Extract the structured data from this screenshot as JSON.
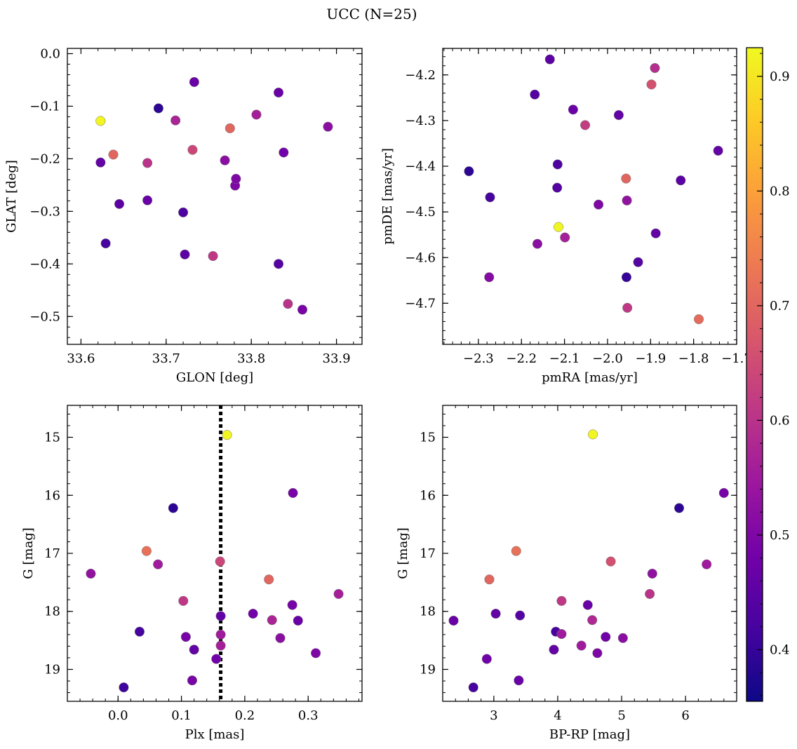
{
  "figure": {
    "title": "UCC (N=25)",
    "colorbar": {
      "range": [
        0.355,
        0.925
      ],
      "ticks": [
        0.4,
        0.5,
        0.6,
        0.7,
        0.8,
        0.9
      ],
      "tick_labels": [
        "0.4",
        "0.5",
        "0.6",
        "0.7",
        "0.8",
        "0.9"
      ],
      "colormap": "plasma",
      "stops": [
        "#0d0887",
        "#46039f",
        "#7201a8",
        "#9c179e",
        "#bd3786",
        "#d8576b",
        "#ed7953",
        "#fb9f3a",
        "#fdca26",
        "#f0f921"
      ]
    }
  },
  "chart_data": [
    {
      "id": "p1",
      "type": "scatter",
      "title": "",
      "xlabel": "GLON [deg]",
      "ylabel": "GLAT [deg]",
      "xlim": [
        33.584,
        33.93
      ],
      "ylim": [
        -0.553,
        0.01
      ],
      "y_inverted": false,
      "xticks": [
        33.6,
        33.7,
        33.8,
        33.9
      ],
      "xtick_labels": [
        "33.6",
        "33.7",
        "33.8",
        "33.9"
      ],
      "yticks": [
        0.0,
        -0.1,
        -0.2,
        -0.3,
        -0.4,
        -0.5
      ],
      "ytick_labels": [
        "0.0",
        "−0.1",
        "−0.2",
        "−0.3",
        "−0.4",
        "−0.5"
      ],
      "points": [
        [
          33.623,
          -0.128,
          0.92
        ],
        [
          33.623,
          -0.207,
          0.46
        ],
        [
          33.629,
          -0.361,
          0.42
        ],
        [
          33.638,
          -0.192,
          0.7
        ],
        [
          33.645,
          -0.286,
          0.45
        ],
        [
          33.678,
          -0.208,
          0.6
        ],
        [
          33.678,
          -0.279,
          0.47
        ],
        [
          33.691,
          -0.104,
          0.39
        ],
        [
          33.711,
          -0.127,
          0.57
        ],
        [
          33.72,
          -0.302,
          0.43
        ],
        [
          33.722,
          -0.382,
          0.45
        ],
        [
          33.731,
          -0.183,
          0.64
        ],
        [
          33.733,
          -0.054,
          0.47
        ],
        [
          33.755,
          -0.385,
          0.61
        ],
        [
          33.769,
          -0.203,
          0.52
        ],
        [
          33.775,
          -0.142,
          0.7
        ],
        [
          33.781,
          -0.251,
          0.5
        ],
        [
          33.782,
          -0.238,
          0.5
        ],
        [
          33.806,
          -0.116,
          0.56
        ],
        [
          33.832,
          -0.074,
          0.47
        ],
        [
          33.832,
          -0.4,
          0.44
        ],
        [
          33.838,
          -0.188,
          0.48
        ],
        [
          33.843,
          -0.476,
          0.6
        ],
        [
          33.86,
          -0.487,
          0.49
        ],
        [
          33.89,
          -0.139,
          0.52
        ]
      ]
    },
    {
      "id": "p2",
      "type": "scatter",
      "title": "",
      "xlabel": "pmRA [mas/yr]",
      "ylabel": "pmDE [mas/yr]",
      "xlim": [
        -2.383,
        -1.7
      ],
      "ylim": [
        -4.79,
        -4.142
      ],
      "y_inverted": false,
      "xticks": [
        -2.3,
        -2.2,
        -2.1,
        -2.0,
        -1.9,
        -1.8,
        -1.7
      ],
      "xtick_labels": [
        "−2.3",
        "−2.2",
        "−2.1",
        "−2.0",
        "−1.9",
        "−1.8",
        "−1.7"
      ],
      "yticks": [
        -4.2,
        -4.3,
        -4.4,
        -4.5,
        -4.6,
        -4.7
      ],
      "ytick_labels": [
        "−4.2",
        "−4.3",
        "−4.4",
        "−4.5",
        "−4.6",
        "−4.7"
      ],
      "points": [
        [
          -2.322,
          -4.411,
          0.39
        ],
        [
          -2.273,
          -4.468,
          0.42
        ],
        [
          -2.275,
          -4.643,
          0.51
        ],
        [
          -2.163,
          -4.57,
          0.52
        ],
        [
          -2.169,
          -4.243,
          0.44
        ],
        [
          -2.134,
          -4.166,
          0.45
        ],
        [
          -2.116,
          -4.396,
          0.43
        ],
        [
          -2.117,
          -4.447,
          0.44
        ],
        [
          -2.114,
          -4.533,
          0.92
        ],
        [
          -2.099,
          -4.556,
          0.56
        ],
        [
          -2.08,
          -4.276,
          0.47
        ],
        [
          -2.052,
          -4.31,
          0.62
        ],
        [
          -2.021,
          -4.484,
          0.5
        ],
        [
          -1.974,
          -4.288,
          0.46
        ],
        [
          -1.957,
          -4.427,
          0.7
        ],
        [
          -1.955,
          -4.475,
          0.53
        ],
        [
          -1.956,
          -4.643,
          0.4
        ],
        [
          -1.954,
          -4.71,
          0.61
        ],
        [
          -1.898,
          -4.221,
          0.66
        ],
        [
          -1.89,
          -4.185,
          0.59
        ],
        [
          -1.888,
          -4.547,
          0.46
        ],
        [
          -1.929,
          -4.61,
          0.44
        ],
        [
          -1.83,
          -4.431,
          0.45
        ],
        [
          -1.788,
          -4.735,
          0.71
        ],
        [
          -1.743,
          -4.366,
          0.46
        ]
      ]
    },
    {
      "id": "p3",
      "type": "scatter",
      "title": "",
      "xlabel": "Plx [mas]",
      "ylabel": "G [mag]",
      "xlim": [
        -0.08,
        0.385
      ],
      "ylim": [
        19.55,
        14.45
      ],
      "y_inverted": true,
      "vline_x": 0.162,
      "xticks": [
        0.0,
        0.1,
        0.2,
        0.3
      ],
      "xtick_labels": [
        "0.0",
        "0.1",
        "0.2",
        "0.3"
      ],
      "yticks": [
        15,
        16,
        17,
        18,
        19
      ],
      "ytick_labels": [
        "15",
        "16",
        "17",
        "18",
        "19"
      ],
      "points": [
        [
          0.172,
          14.96,
          0.92
        ],
        [
          0.276,
          15.96,
          0.49
        ],
        [
          0.087,
          16.22,
          0.39
        ],
        [
          0.045,
          16.96,
          0.72
        ],
        [
          0.063,
          17.19,
          0.55
        ],
        [
          -0.043,
          17.35,
          0.53
        ],
        [
          0.161,
          17.14,
          0.64
        ],
        [
          0.238,
          17.45,
          0.7
        ],
        [
          0.348,
          17.7,
          0.56
        ],
        [
          0.103,
          17.82,
          0.61
        ],
        [
          0.275,
          17.89,
          0.49
        ],
        [
          0.213,
          18.04,
          0.48
        ],
        [
          0.162,
          18.08,
          0.46
        ],
        [
          0.243,
          18.15,
          0.57
        ],
        [
          0.284,
          18.16,
          0.47
        ],
        [
          0.034,
          18.35,
          0.42
        ],
        [
          0.162,
          18.4,
          0.55
        ],
        [
          0.107,
          18.44,
          0.49
        ],
        [
          0.256,
          18.46,
          0.52
        ],
        [
          0.162,
          18.59,
          0.56
        ],
        [
          0.12,
          18.66,
          0.46
        ],
        [
          0.312,
          18.72,
          0.5
        ],
        [
          0.155,
          18.82,
          0.48
        ],
        [
          0.117,
          19.19,
          0.49
        ],
        [
          0.009,
          19.31,
          0.41
        ]
      ]
    },
    {
      "id": "p4",
      "type": "scatter",
      "title": "",
      "xlabel": "BP-RP [mag]",
      "ylabel": "G [mag]",
      "xlim": [
        2.2,
        6.8
      ],
      "ylim": [
        19.55,
        14.45
      ],
      "y_inverted": true,
      "xticks": [
        3,
        4,
        5,
        6
      ],
      "xtick_labels": [
        "3",
        "4",
        "5",
        "6"
      ],
      "yticks": [
        15,
        16,
        17,
        18,
        19
      ],
      "ytick_labels": [
        "15",
        "16",
        "17",
        "18",
        "19"
      ],
      "points": [
        [
          4.55,
          14.95,
          0.92
        ],
        [
          6.6,
          15.96,
          0.49
        ],
        [
          5.9,
          16.22,
          0.39
        ],
        [
          3.35,
          16.96,
          0.72
        ],
        [
          2.93,
          17.45,
          0.7
        ],
        [
          4.83,
          17.14,
          0.66
        ],
        [
          6.33,
          17.19,
          0.55
        ],
        [
          5.48,
          17.35,
          0.53
        ],
        [
          5.44,
          17.7,
          0.6
        ],
        [
          4.06,
          17.82,
          0.61
        ],
        [
          4.47,
          17.89,
          0.47
        ],
        [
          3.03,
          18.04,
          0.46
        ],
        [
          3.41,
          18.07,
          0.44
        ],
        [
          4.54,
          18.15,
          0.58
        ],
        [
          2.37,
          18.16,
          0.47
        ],
        [
          3.97,
          18.35,
          0.42
        ],
        [
          4.06,
          18.39,
          0.55
        ],
        [
          4.75,
          18.44,
          0.48
        ],
        [
          5.02,
          18.46,
          0.52
        ],
        [
          4.37,
          18.59,
          0.55
        ],
        [
          3.94,
          18.66,
          0.46
        ],
        [
          4.62,
          18.72,
          0.5
        ],
        [
          2.89,
          18.82,
          0.48
        ],
        [
          3.39,
          19.19,
          0.47
        ],
        [
          2.68,
          19.31,
          0.42
        ]
      ]
    }
  ]
}
